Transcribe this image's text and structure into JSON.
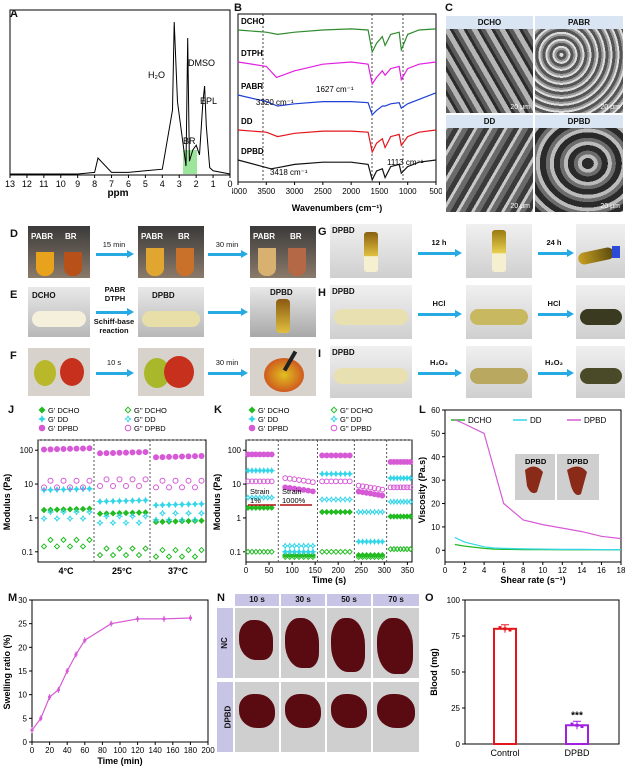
{
  "labels": {
    "A": "A",
    "B": "B",
    "C": "C",
    "D": "D",
    "E": "E",
    "F": "F",
    "G": "G",
    "H": "H",
    "I": "I",
    "J": "J",
    "K": "K",
    "L": "L",
    "M": "M",
    "N": "N",
    "O": "O"
  },
  "panelA": {
    "xlabel": "ppm",
    "ticks": [
      "13",
      "12",
      "11",
      "10",
      "9",
      "8",
      "7",
      "6",
      "5",
      "4",
      "3",
      "2",
      "1",
      "0"
    ],
    "annotations": {
      "h2o": "H₂O",
      "dmso": "DMSO",
      "epl": "EPL",
      "br": "BR"
    }
  },
  "panelB": {
    "xlabel": "Wavenumbers (cm⁻¹)",
    "ticks": [
      "4000",
      "3500",
      "3000",
      "2500",
      "2000",
      "1500",
      "1000",
      "500"
    ],
    "series": [
      "DCHO",
      "DTPH",
      "PABR",
      "DD",
      "DPBD"
    ],
    "colors": [
      "#2e8b2e",
      "#e020e0",
      "#1f3fd6",
      "#e3161b",
      "#111111"
    ],
    "annotations": {
      "a3320": "3320 cm⁻¹",
      "a1627": "1627 cm⁻¹",
      "a3418": "3418 cm⁻¹",
      "a1113": "1113 cm⁻¹"
    }
  },
  "panelC": {
    "tiles": [
      "DCHO",
      "PABR",
      "DD",
      "DPBD"
    ],
    "scale": "20 μm"
  },
  "panelD": {
    "vials": [
      "PABR",
      "BR"
    ],
    "steps": [
      "15 min",
      "30 min"
    ]
  },
  "panelE": {
    "start": "DCHO",
    "reagents": "PABR\nDTPH",
    "reaction": "Schiff-base\nreaction",
    "product": "DPBD"
  },
  "panelF": {
    "steps": [
      "10 s",
      "30 min"
    ]
  },
  "panelG": {
    "label": "DPBD",
    "steps": [
      "12 h",
      "24 h"
    ]
  },
  "panelH": {
    "label": "DPBD",
    "steps": [
      "HCl",
      "HCl"
    ]
  },
  "panelI": {
    "label": "DPBD",
    "steps": [
      "H₂O₂",
      "H₂O₂"
    ]
  },
  "panelJ": {
    "ylabel": "Modulus (Pa)",
    "yticks": [
      "0.1",
      "1",
      "10",
      "100"
    ],
    "groups": [
      "4°C",
      "25°C",
      "37°C"
    ],
    "legend": [
      "G' DCHO",
      "G'' DCHO",
      "G' DD",
      "G'' DD",
      "G' DPBD",
      "G'' DPBD"
    ]
  },
  "panelK": {
    "ylabel": "Modulus (Pa)",
    "xlabel": "Time (s)",
    "xticks": [
      "0",
      "50",
      "100",
      "150",
      "200",
      "250",
      "300",
      "350"
    ],
    "yticks": [
      "0.1",
      "1",
      "10",
      "100"
    ],
    "legend": [
      "G'  DCHO",
      "G''  DCHO",
      "G'  DD",
      "G''  DD",
      "G'  DPBD",
      "G''  DPBD"
    ],
    "strain1": "Strain\n1%",
    "strain2": "Strain\n1000%"
  },
  "panelL": {
    "ylabel": "Viscosity (Pa.s)",
    "xlabel": "Shear rate (s⁻¹)",
    "xticks": [
      "0",
      "2",
      "4",
      "6",
      "8",
      "10",
      "12",
      "14",
      "16",
      "18"
    ],
    "yticks": [
      "0",
      "10",
      "20",
      "30",
      "40",
      "50",
      "60"
    ],
    "legend": [
      "DCHO",
      "DD",
      "DPBD"
    ],
    "colors": [
      "#22bb22",
      "#33d6e8",
      "#d65ad6"
    ],
    "inset": [
      "DPBD",
      "DPBD"
    ]
  },
  "panelM": {
    "ylabel": "Swelling ratio (%)",
    "xlabel": "Time (min)",
    "xticks": [
      "0",
      "20",
      "40",
      "60",
      "80",
      "100",
      "120",
      "140",
      "160",
      "180",
      "200"
    ],
    "yticks": [
      "0",
      "5",
      "10",
      "15",
      "20",
      "25",
      "30"
    ]
  },
  "panelN": {
    "times": [
      "10 s",
      "30 s",
      "50 s",
      "70 s"
    ],
    "rows": [
      "NC",
      "DPBD"
    ]
  },
  "panelO": {
    "ylabel": "Blood (mg)",
    "yticks": [
      "0",
      "25",
      "50",
      "75",
      "100"
    ],
    "categories": [
      "Control",
      "DPBD"
    ],
    "significance": "***"
  },
  "chart_data": [
    {
      "panel": "A",
      "type": "line",
      "xlabel": "ppm",
      "x": [
        13,
        12,
        11,
        10,
        9,
        8,
        7.8,
        7,
        6,
        5,
        4,
        3.4,
        3.3,
        3.1,
        2.6,
        2.5,
        2.4,
        2.2,
        2.0,
        1.8,
        1.6,
        1.5,
        1.4,
        1.2,
        1,
        0
      ],
      "y": [
        0,
        0,
        0,
        0,
        0,
        0.01,
        0.1,
        0.01,
        0.01,
        0.02,
        0.03,
        0.4,
        0.95,
        0.45,
        0.05,
        0.85,
        0.08,
        0.15,
        0.18,
        0.12,
        0.45,
        0.55,
        0.3,
        0.04,
        0.02,
        0.0
      ],
      "annotations": [
        "H₂O",
        "DMSO",
        "EPL",
        "BR"
      ]
    },
    {
      "panel": "B",
      "type": "line",
      "xlabel": "Wavenumbers (cm⁻¹)",
      "xlim": [
        4000,
        500
      ],
      "series": [
        {
          "name": "DCHO",
          "x": [
            4000,
            3500,
            3300,
            3000,
            2500,
            2000,
            1700,
            1627,
            1550,
            1450,
            1400,
            1300,
            1150,
            1113,
            1000,
            800,
            500
          ],
          "y": [
            0,
            -0.1,
            -0.2,
            -0.1,
            0,
            0.05,
            0,
            -1,
            -0.6,
            -0.3,
            -0.7,
            -0.2,
            -0.1,
            -0.9,
            -0.2,
            0,
            0.05
          ]
        },
        {
          "name": "DTPH",
          "x": [
            4000,
            3500,
            3320,
            3000,
            2500,
            2000,
            1700,
            1627,
            1550,
            1450,
            1400,
            1300,
            1150,
            1113,
            1000,
            800,
            500
          ],
          "y": [
            0,
            -0.2,
            -0.7,
            -0.4,
            -0.1,
            0,
            -0.1,
            -1,
            -0.7,
            -0.4,
            -0.6,
            -0.3,
            -0.2,
            -0.8,
            -0.3,
            -0.1,
            0
          ]
        },
        {
          "name": "PABR",
          "x": [
            4000,
            3500,
            3300,
            3000,
            2500,
            2000,
            1700,
            1627,
            1550,
            1450,
            1400,
            1300,
            1150,
            1113,
            1000,
            800,
            500
          ],
          "y": [
            0,
            -0.3,
            -0.5,
            -0.4,
            -0.3,
            -0.3,
            -0.35,
            -0.9,
            -0.7,
            -0.5,
            -0.5,
            -0.4,
            -0.35,
            -0.6,
            -0.4,
            -0.2,
            0.1
          ]
        },
        {
          "name": "DD",
          "x": [
            4000,
            3500,
            3300,
            3000,
            2500,
            2000,
            1700,
            1627,
            1550,
            1450,
            1400,
            1300,
            1150,
            1113,
            1000,
            800,
            500
          ],
          "y": [
            0,
            -0.1,
            -0.3,
            -0.15,
            -0.05,
            -0.05,
            -0.1,
            -1,
            -0.6,
            -0.4,
            -0.8,
            -0.3,
            -0.2,
            -0.7,
            -0.3,
            -0.1,
            0
          ]
        },
        {
          "name": "DPBD",
          "x": [
            4000,
            3418,
            3300,
            3000,
            2500,
            2000,
            1700,
            1627,
            1550,
            1450,
            1400,
            1300,
            1150,
            1113,
            1000,
            800,
            500
          ],
          "y": [
            0,
            -0.4,
            -0.35,
            -0.2,
            -0.1,
            -0.1,
            -0.2,
            -0.9,
            -0.5,
            -0.4,
            -0.8,
            -0.3,
            -0.2,
            -0.6,
            -0.3,
            -0.1,
            0
          ]
        }
      ]
    },
    {
      "panel": "J",
      "type": "scatter",
      "ylabel": "Modulus (Pa)",
      "yscale": "log",
      "ylim": [
        0.05,
        200
      ],
      "categories": [
        "4°C",
        "25°C",
        "37°C"
      ],
      "series": [
        {
          "name": "G' DCHO",
          "values": [
            1.8,
            1.4,
            0.8
          ]
        },
        {
          "name": "G'' DCHO",
          "values": [
            0.18,
            0.1,
            0.09
          ]
        },
        {
          "name": "G' DD",
          "values": [
            7,
            3.2,
            2.5
          ]
        },
        {
          "name": "G'' DD",
          "values": [
            1.2,
            0.9,
            1.1
          ]
        },
        {
          "name": "G' DPBD",
          "values": [
            110,
            85,
            65
          ]
        },
        {
          "name": "G'' DPBD",
          "values": [
            10,
            11,
            10
          ]
        }
      ]
    },
    {
      "panel": "K",
      "type": "scatter",
      "xlabel": "Time (s)",
      "ylabel": "Modulus (Pa)",
      "yscale": "log",
      "xlim": [
        0,
        360
      ],
      "ylim": [
        0.05,
        200
      ],
      "segments": [
        [
          0,
          60
        ],
        [
          80,
          150
        ],
        [
          160,
          230
        ],
        [
          240,
          300
        ],
        [
          310,
          360
        ]
      ],
      "series": [
        {
          "name": "G'  DCHO",
          "values": [
            2,
            0.08,
            1.5,
            0.08,
            1.1
          ]
        },
        {
          "name": "G''  DCHO",
          "values": [
            0.1,
            0.07,
            0.1,
            0.07,
            0.12
          ]
        },
        {
          "name": "G'  DD",
          "values": [
            25,
            0.1,
            20,
            0.2,
            15
          ]
        },
        {
          "name": "G''  DD",
          "values": [
            4,
            0.15,
            3.5,
            1.5,
            3
          ]
        },
        {
          "name": "G'  DPBD",
          "values": [
            75,
            8,
            70,
            6,
            45
          ]
        },
        {
          "name": "G''  DPBD",
          "values": [
            12,
            15,
            12,
            9,
            8
          ]
        }
      ]
    },
    {
      "panel": "L",
      "type": "line",
      "xlabel": "Shear rate (s⁻¹)",
      "ylabel": "Viscosity (Pa.s)",
      "xlim": [
        0,
        18
      ],
      "ylim": [
        -5,
        60
      ],
      "x": [
        1,
        2,
        4,
        5,
        6,
        8,
        10,
        12,
        14,
        16,
        18
      ],
      "series": [
        {
          "name": "DCHO",
          "values": [
            2.5,
            1.8,
            0.8,
            0.5,
            0.4,
            0.3,
            0.3,
            0.2,
            0.2,
            0.2,
            0.2
          ]
        },
        {
          "name": "DD",
          "values": [
            5.5,
            3.5,
            1.5,
            1,
            0.8,
            0.6,
            0.5,
            0.4,
            0.4,
            0.3,
            0.3
          ]
        },
        {
          "name": "DPBD",
          "values": [
            56,
            54,
            50,
            35,
            20,
            13,
            11,
            9.5,
            8,
            6,
            5
          ]
        }
      ]
    },
    {
      "panel": "M",
      "type": "line",
      "xlabel": "Time (min)",
      "ylabel": "Swelling ratio (%)",
      "xlim": [
        0,
        200
      ],
      "ylim": [
        0,
        30
      ],
      "x": [
        0,
        10,
        20,
        30,
        40,
        50,
        60,
        90,
        120,
        150,
        180
      ],
      "values": [
        2.5,
        5,
        9.5,
        11,
        15,
        18.5,
        21.5,
        25,
        26,
        26,
        26.2
      ]
    },
    {
      "panel": "O",
      "type": "bar",
      "ylabel": "Blood (mg)",
      "ylim": [
        0,
        100
      ],
      "categories": [
        "Control",
        "DPBD"
      ],
      "values": [
        80,
        13
      ]
    }
  ]
}
